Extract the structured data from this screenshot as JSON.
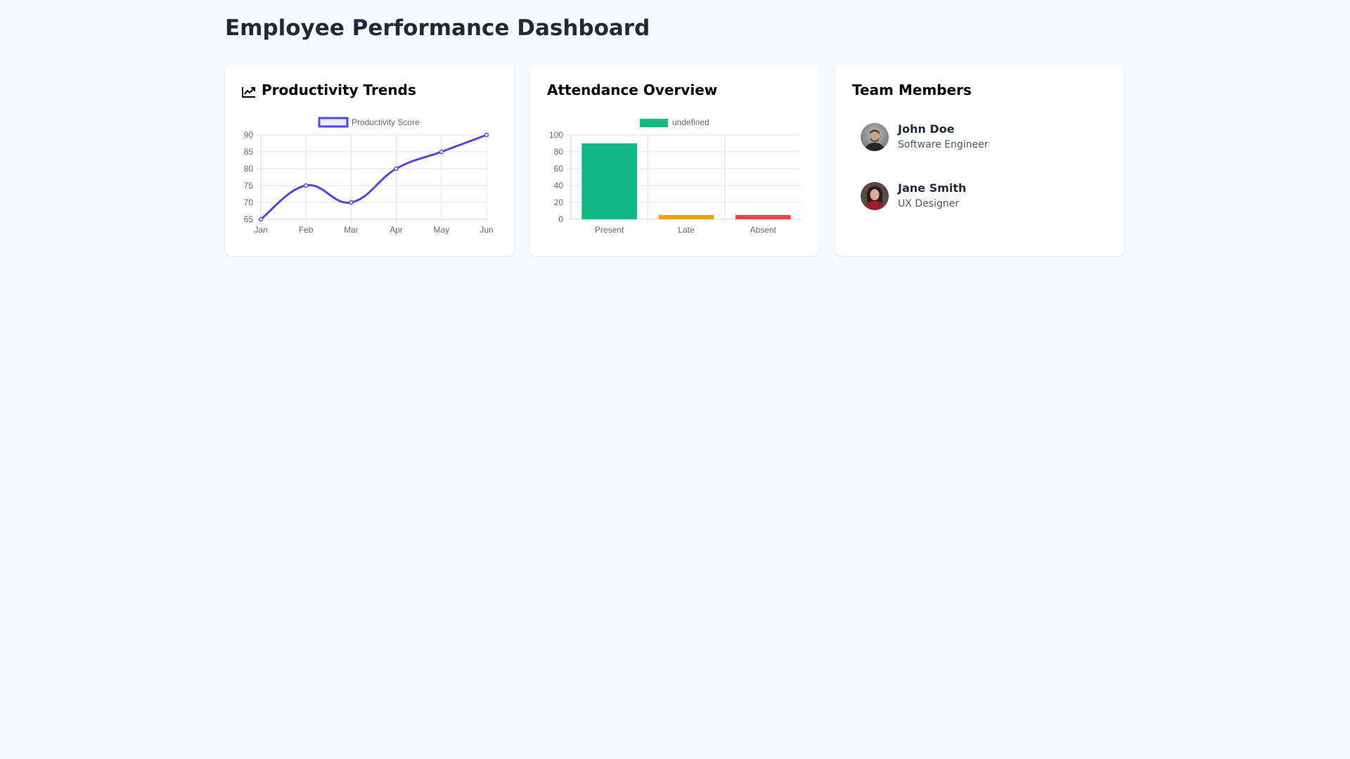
{
  "page": {
    "title": "Employee Performance Dashboard"
  },
  "cards": {
    "productivity": {
      "title": "Productivity Trends",
      "icon": "chart-line-icon"
    },
    "attendance": {
      "title": "Attendance Overview"
    },
    "team": {
      "title": "Team Members",
      "members": [
        {
          "name": "John Doe",
          "role": "Software Engineer",
          "avatar": "avatar-photo"
        },
        {
          "name": "Jane Smith",
          "role": "UX Designer",
          "avatar": "avatar-photo"
        }
      ]
    }
  },
  "chart_data": [
    {
      "type": "line",
      "categories": [
        "Jan",
        "Feb",
        "Mar",
        "Apr",
        "May",
        "Jun"
      ],
      "series": [
        {
          "name": "Productivity Score",
          "values": [
            65,
            75,
            70,
            80,
            85,
            90
          ],
          "color": "#4f46e5"
        }
      ],
      "ylim": [
        65,
        90
      ],
      "yticks": [
        "65",
        "70",
        "75",
        "80",
        "85",
        "90"
      ],
      "grid": true,
      "legend": "top"
    },
    {
      "type": "bar",
      "categories": [
        "Present",
        "Late",
        "Absent"
      ],
      "values": [
        90,
        5,
        5
      ],
      "colors": [
        "#10b981",
        "#f59e0b",
        "#ef4444"
      ],
      "legend_label": "undefined",
      "ylim": [
        0,
        100
      ],
      "yticks": [
        "0",
        "20",
        "40",
        "60",
        "80",
        "100"
      ],
      "grid": true,
      "legend": "top"
    }
  ]
}
